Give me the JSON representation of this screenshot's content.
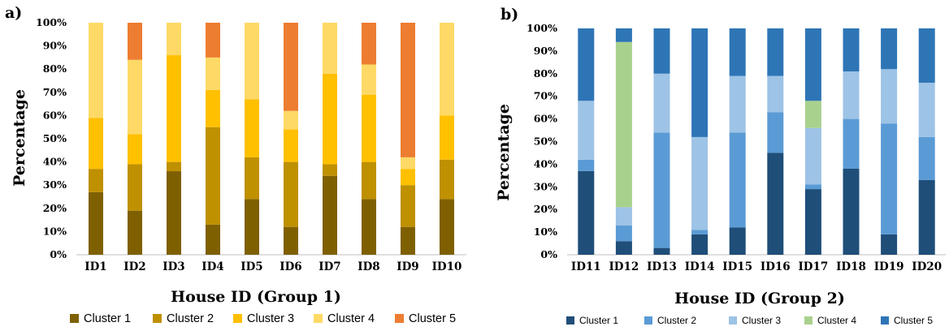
{
  "chart_data": [
    {
      "panel": "a)",
      "type": "bar",
      "stacked": true,
      "categories": [
        "ID1",
        "ID2",
        "ID3",
        "ID4",
        "ID5",
        "ID6",
        "ID7",
        "ID8",
        "ID9",
        "ID10"
      ],
      "xlabel": "House ID (Group 1)",
      "ylabel": "Percentage",
      "ylim": [
        0,
        100
      ],
      "yticks": [
        "0%",
        "10%",
        "20%",
        "30%",
        "40%",
        "50%",
        "60%",
        "70%",
        "80%",
        "90%",
        "100%"
      ],
      "legend_position": "bottom",
      "series": [
        {
          "name": "Cluster 1",
          "color": "#7f6000",
          "values": [
            27,
            19,
            36,
            13,
            24,
            12,
            34,
            24,
            12,
            24
          ]
        },
        {
          "name": "Cluster 2",
          "color": "#bf9000",
          "values": [
            10,
            20,
            4,
            42,
            18,
            28,
            5,
            16,
            18,
            17
          ]
        },
        {
          "name": "Cluster 3",
          "color": "#ffc000",
          "values": [
            22,
            13,
            46,
            16,
            25,
            14,
            39,
            29,
            7,
            19
          ]
        },
        {
          "name": "Cluster 4",
          "color": "#ffd966",
          "values": [
            41,
            32,
            14,
            14,
            33,
            8,
            22,
            13,
            5,
            40
          ]
        },
        {
          "name": "Cluster 5",
          "color": "#ed7d31",
          "values": [
            0,
            16,
            0,
            15,
            0,
            38,
            0,
            18,
            58,
            0
          ]
        }
      ]
    },
    {
      "panel": "b)",
      "type": "bar",
      "stacked": true,
      "categories": [
        "ID11",
        "ID12",
        "ID13",
        "ID14",
        "ID15",
        "ID16",
        "ID17",
        "ID18",
        "ID19",
        "ID20"
      ],
      "xlabel": "House ID (Group 2)",
      "ylabel": "Percentage",
      "ylim": [
        0,
        100
      ],
      "yticks": [
        "0%",
        "10%",
        "20%",
        "30%",
        "40%",
        "50%",
        "60%",
        "70%",
        "80%",
        "90%",
        "100%"
      ],
      "legend_position": "bottom",
      "series": [
        {
          "name": "Cluster 1",
          "color": "#1f4e79",
          "values": [
            37,
            6,
            3,
            9,
            12,
            45,
            29,
            38,
            9,
            33
          ]
        },
        {
          "name": "Cluster 2",
          "color": "#5b9bd5",
          "values": [
            5,
            7,
            51,
            2,
            42,
            18,
            2,
            22,
            49,
            19
          ]
        },
        {
          "name": "Cluster 3",
          "color": "#9dc3e6",
          "values": [
            26,
            8,
            26,
            41,
            25,
            16,
            25,
            21,
            24,
            24
          ]
        },
        {
          "name": "Cluster 4",
          "color": "#a9d18e",
          "values": [
            0,
            73,
            0,
            0,
            0,
            0,
            12,
            0,
            0,
            0
          ]
        },
        {
          "name": "Cluster 5",
          "color": "#2e75b6",
          "values": [
            32,
            6,
            20,
            48,
            21,
            21,
            32,
            19,
            18,
            24
          ]
        }
      ]
    }
  ]
}
